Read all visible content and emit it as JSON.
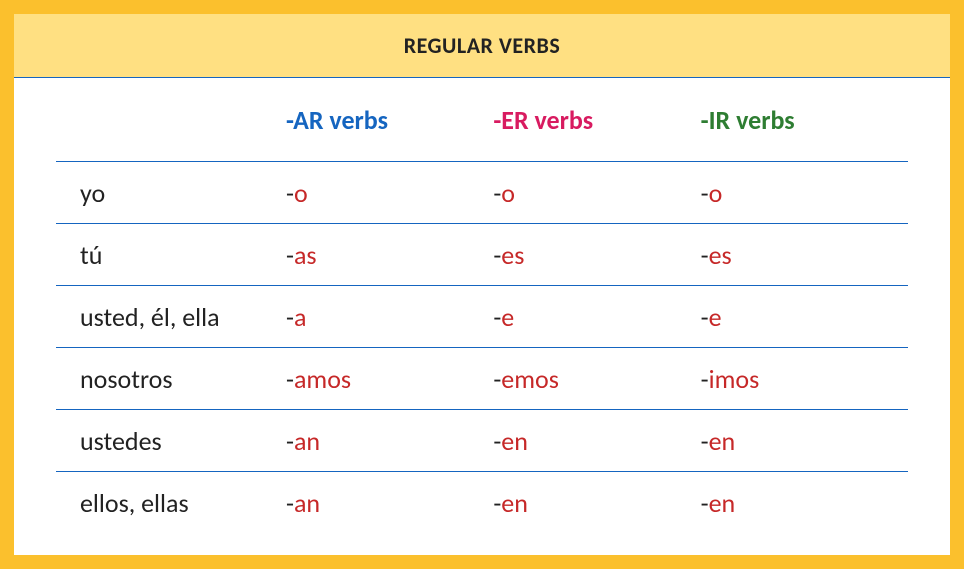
{
  "title": "REGULAR VERBS",
  "columns": [
    {
      "label": "-AR verbs",
      "color": "#1565c0"
    },
    {
      "label": "-ER verbs",
      "color": "#d81b60"
    },
    {
      "label": "-IR verbs",
      "color": "#2e7d32"
    }
  ],
  "rows": [
    {
      "pronoun": "yo",
      "endings": [
        "o",
        "o",
        "o"
      ]
    },
    {
      "pronoun": "tú",
      "endings": [
        "as",
        "es",
        "es"
      ]
    },
    {
      "pronoun": "usted, él, ella",
      "endings": [
        "a",
        "e",
        "e"
      ]
    },
    {
      "pronoun": "nosotros",
      "endings": [
        "amos",
        "emos",
        "imos"
      ]
    },
    {
      "pronoun": "ustedes",
      "endings": [
        "an",
        "en",
        "en"
      ]
    },
    {
      "pronoun": "ellos, ellas",
      "endings": [
        "an",
        "en",
        "en"
      ]
    }
  ],
  "style": {
    "border_color": "#fbc02d",
    "title_band_color": "#ffe082",
    "row_divider_color": "#1565c0",
    "pronoun_text_color": "#222222",
    "ending_suffix_color": "#c62828",
    "dash_color": "#222222",
    "title_fontsize": 22,
    "header_fontsize": 26,
    "body_fontsize": 26
  }
}
